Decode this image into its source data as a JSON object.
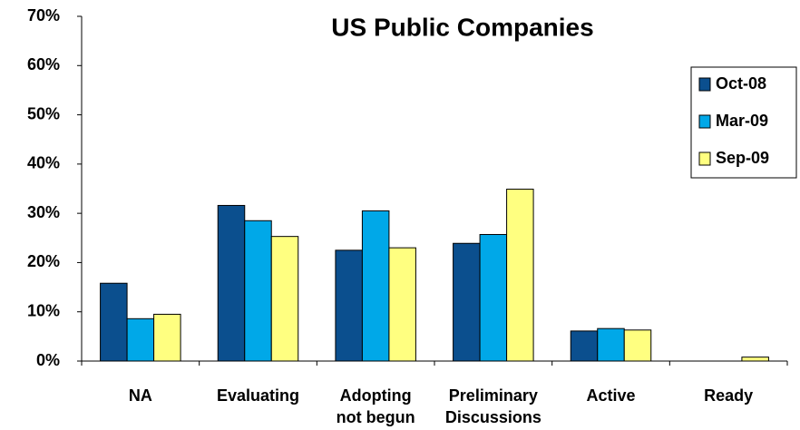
{
  "chart_data": {
    "type": "bar",
    "title": "US Public Companies",
    "categories": [
      "NA",
      "Evaluating",
      "Adopting not begun",
      "Preliminary Discussions",
      "Active",
      "Ready"
    ],
    "series": [
      {
        "name": "Oct-08",
        "color": "#0b4f8e",
        "values": [
          15.8,
          31.6,
          22.5,
          23.9,
          6.1,
          0
        ]
      },
      {
        "name": "Mar-09",
        "color": "#00a8e8",
        "values": [
          8.6,
          28.5,
          30.5,
          25.7,
          6.6,
          0
        ]
      },
      {
        "name": "Sep-09",
        "color": "#ffff80",
        "values": [
          9.5,
          25.3,
          23.0,
          34.9,
          6.3,
          0.8
        ]
      }
    ],
    "ylim": [
      0,
      70
    ],
    "yticks": [
      {
        "value": 0,
        "label": "0%"
      },
      {
        "value": 10,
        "label": "10%"
      },
      {
        "value": 20,
        "label": "20%"
      },
      {
        "value": 30,
        "label": "30%"
      },
      {
        "value": 40,
        "label": "40%"
      },
      {
        "value": 50,
        "label": "50%"
      },
      {
        "value": 60,
        "label": "60%"
      },
      {
        "value": 70,
        "label": "70%"
      }
    ],
    "grid": false,
    "legend": "upper right"
  }
}
